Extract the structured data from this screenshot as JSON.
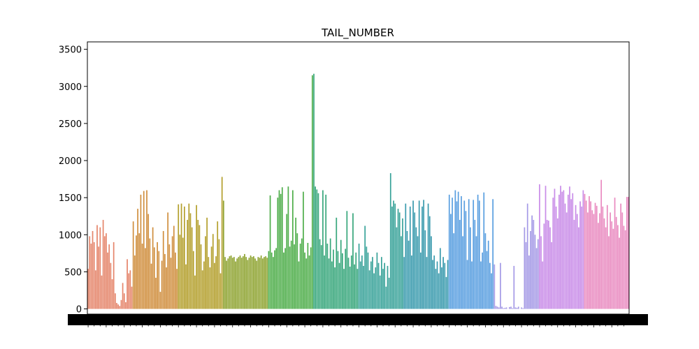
{
  "chart_data": {
    "type": "bar",
    "title": "TAIL_NUMBER",
    "xlabel": "",
    "ylabel": "",
    "ylim": [
      -70,
      3600
    ],
    "yticks": [
      0,
      500,
      1000,
      1500,
      2000,
      2500,
      3000,
      3500
    ],
    "ytick_labels": [
      "0",
      "500",
      "1000",
      "1500",
      "2000",
      "2500",
      "3000",
      "3500"
    ],
    "grid": false,
    "legend": "none",
    "n_categories": 600,
    "x_tick_labels_illegible": true,
    "segments": [
      {
        "color": "#e5866c",
        "values": [
          540,
          980,
          880,
          1050,
          900,
          520,
          1130,
          840,
          1100,
          450,
          1200,
          980,
          1020,
          760,
          870,
          620,
          400,
          900,
          210,
          80,
          60,
          40,
          120,
          350,
          210,
          90,
          670,
          480,
          520,
          300
        ]
      },
      {
        "color": "#d08f3f",
        "values": [
          1180,
          720,
          990,
          1350,
          1020,
          1540,
          880,
          1590,
          820,
          1600,
          1280,
          950,
          610,
          1100,
          830,
          420,
          900,
          780,
          230,
          650,
          1050,
          740,
          560,
          1300,
          870,
          690,
          980,
          1120,
          760,
          540
        ]
      },
      {
        "color": "#b4a02e",
        "values": [
          1410,
          1000,
          1420,
          960,
          1380,
          600,
          1200,
          1420,
          1290,
          1100,
          780,
          450,
          1400,
          1200,
          1130,
          870,
          520,
          640,
          980,
          1230,
          700,
          560,
          840,
          1010,
          620,
          710,
          1180,
          940,
          480,
          1780
        ]
      },
      {
        "color": "#8fa432",
        "values": [
          1460,
          700,
          650,
          680,
          710,
          720,
          690,
          700,
          640,
          680,
          700,
          720,
          690,
          710,
          740,
          700,
          660,
          690,
          720,
          700,
          710,
          680,
          650,
          700,
          690,
          720,
          680,
          700,
          710,
          690
        ]
      },
      {
        "color": "#4fae4b",
        "values": [
          780,
          1530,
          760,
          700,
          790,
          820,
          1500,
          1600,
          1550,
          1640,
          760,
          820,
          1280,
          1650,
          840,
          920,
          1600,
          870,
          1230,
          1020,
          640,
          880,
          950,
          1580,
          760,
          680,
          890,
          720,
          830,
          3150
        ]
      },
      {
        "color": "#38a77c",
        "values": [
          3170,
          1650,
          1610,
          1560,
          940,
          860,
          1600,
          720,
          1540,
          880,
          680,
          950,
          640,
          800,
          560,
          1230,
          780,
          620,
          930,
          750,
          540,
          810,
          1320,
          690,
          570,
          720,
          1290,
          600,
          760,
          540
        ]
      },
      {
        "color": "#3aa39a",
        "values": [
          880,
          640,
          720,
          580,
          1120,
          840,
          760,
          520,
          640,
          700,
          480,
          560,
          760,
          620,
          450,
          700,
          540,
          620,
          300,
          580,
          420,
          1830,
          1380,
          1460,
          1420,
          1100,
          1350,
          1300,
          980,
          1220
        ]
      },
      {
        "color": "#3b9bae",
        "values": [
          700,
          1420,
          1050,
          920,
          1380,
          720,
          1460,
          1300,
          1100,
          980,
          1460,
          760,
          1380,
          1470,
          1060,
          700,
          1420,
          1250,
          980,
          660,
          720,
          540,
          640,
          480,
          820,
          560,
          700,
          620,
          430,
          660
        ]
      },
      {
        "color": "#5a9fe0",
        "values": [
          1540,
          1280,
          1500,
          1020,
          1600,
          1450,
          1580,
          1200,
          1520,
          980,
          1460,
          1320,
          660,
          1480,
          1100,
          640,
          1470,
          1200,
          980,
          1540,
          1460,
          640,
          760,
          1570,
          1020,
          780,
          920,
          620,
          480,
          1480
        ]
      },
      {
        "color": "#a59ae6",
        "values": [
          600,
          40,
          30,
          20,
          620,
          30,
          10,
          15,
          20,
          0,
          25,
          30,
          10,
          580,
          20,
          15,
          30,
          0,
          20,
          10,
          1100,
          900,
          1420,
          720,
          1050,
          1260,
          1200,
          1000,
          820,
          940
        ]
      },
      {
        "color": "#c98de8",
        "values": [
          1680,
          980,
          640,
          1150,
          1660,
          1200,
          1190,
          1100,
          900,
          1500,
          1620,
          1380,
          1220,
          1540,
          1660,
          1580,
          1600,
          1420,
          1300,
          1540,
          1650,
          1480,
          1560,
          1200,
          1400,
          1280,
          1100,
          1450,
          1380,
          1600
        ]
      },
      {
        "color": "#e98bc0",
        "values": [
          1550,
          1460,
          1300,
          1520,
          1450,
          1330,
          1280,
          1430,
          1390,
          1160,
          1290,
          1740,
          1380,
          1220,
          1100,
          1400,
          980,
          1300,
          1180,
          1080,
          1500,
          1240,
          1130,
          960,
          1420,
          1300,
          1120,
          1060,
          1510,
          1510
        ]
      }
    ]
  }
}
